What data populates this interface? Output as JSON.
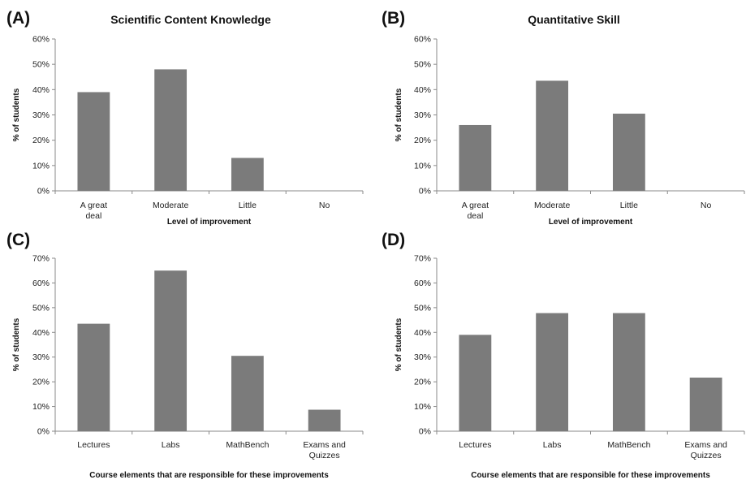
{
  "chart_data": [
    {
      "type": "bar",
      "panel": "(A)",
      "title": "Scientific Content Knowledge",
      "xlabel": "Level of improvement",
      "ylabel": "% of students",
      "categories": [
        "A great deal",
        "Moderate",
        "Little",
        "No"
      ],
      "values": [
        39,
        48,
        13,
        0
      ],
      "ylim": [
        0,
        60
      ],
      "yticks": [
        "0%",
        "10%",
        "20%",
        "30%",
        "40%",
        "50%",
        "60%"
      ],
      "grid": false,
      "bar_color": "#7b7b7b"
    },
    {
      "type": "bar",
      "panel": "(B)",
      "title": "Quantitative Skill",
      "xlabel": "Level of improvement",
      "ylabel": "% of students",
      "categories": [
        "A great deal",
        "Moderate",
        "Little",
        "No"
      ],
      "values": [
        26,
        43.5,
        30.5,
        0
      ],
      "ylim": [
        0,
        60
      ],
      "yticks": [
        "0%",
        "10%",
        "20%",
        "30%",
        "40%",
        "50%",
        "60%"
      ],
      "grid": false,
      "bar_color": "#7b7b7b"
    },
    {
      "type": "bar",
      "panel": "(C)",
      "title": "",
      "xlabel": "Course elements that are responsible for these improvements",
      "ylabel": "% of students",
      "categories": [
        "Lectures",
        "Labs",
        "MathBench",
        "Exams and Quizzes"
      ],
      "values": [
        43.5,
        65,
        30.5,
        8.7
      ],
      "ylim": [
        0,
        70
      ],
      "yticks": [
        "0%",
        "10%",
        "20%",
        "30%",
        "40%",
        "50%",
        "60%",
        "70%"
      ],
      "grid": false,
      "bar_color": "#7b7b7b"
    },
    {
      "type": "bar",
      "panel": "(D)",
      "title": "",
      "xlabel": "Course elements that are responsible for these improvements",
      "ylabel": "% of students",
      "categories": [
        "Lectures",
        "Labs",
        "MathBench",
        "Exams and Quizzes"
      ],
      "values": [
        39,
        47.8,
        47.8,
        21.7
      ],
      "ylim": [
        0,
        70
      ],
      "yticks": [
        "0%",
        "10%",
        "20%",
        "30%",
        "40%",
        "50%",
        "60%",
        "70%"
      ],
      "grid": false,
      "bar_color": "#7b7b7b"
    }
  ]
}
